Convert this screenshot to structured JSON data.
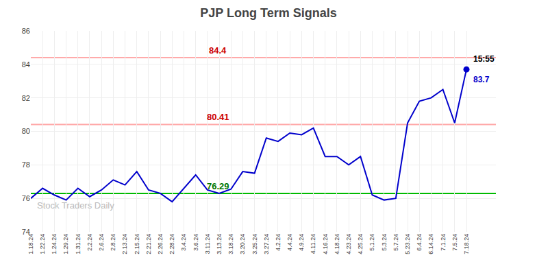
{
  "chart_data": {
    "type": "line",
    "title": "PJP Long Term Signals",
    "categories": [
      "1.18.24",
      "1.22.24",
      "1.24.24",
      "1.29.24",
      "1.31.24",
      "2.2.24",
      "2.6.24",
      "2.8.24",
      "2.13.24",
      "2.15.24",
      "2.21.24",
      "2.26.24",
      "2.28.24",
      "3.4.24",
      "3.6.24",
      "3.11.24",
      "3.13.24",
      "3.18.24",
      "3.20.24",
      "3.25.24",
      "3.27.24",
      "4.2.24",
      "4.4.24",
      "4.9.24",
      "4.11.24",
      "4.16.24",
      "4.18.24",
      "4.23.24",
      "4.25.24",
      "5.1.24",
      "5.3.24",
      "5.7.24",
      "5.23.24",
      "6.4.24",
      "6.14.24",
      "7.1.24",
      "7.5.24",
      "7.18.24"
    ],
    "values": [
      76.0,
      76.6,
      76.2,
      75.9,
      76.6,
      76.1,
      76.5,
      77.1,
      76.8,
      77.6,
      76.5,
      76.3,
      75.8,
      76.6,
      77.4,
      76.5,
      76.3,
      76.55,
      77.6,
      77.5,
      79.6,
      79.4,
      79.9,
      79.8,
      80.2,
      78.5,
      78.5,
      78.0,
      78.5,
      76.2,
      75.9,
      76.0,
      80.5,
      81.8,
      82.0,
      82.5,
      80.5,
      83.7
    ],
    "color": "#0000cc",
    "ylim": [
      74,
      86
    ],
    "yticks": [
      74,
      76,
      78,
      80,
      82,
      84,
      86
    ],
    "grid": true,
    "reference_lines": [
      {
        "value": 76.29,
        "color": "#00bb00"
      },
      {
        "value": 80.41,
        "color": "#ffaaaa"
      },
      {
        "value": 84.4,
        "color": "#ffaaaa"
      }
    ],
    "annotations": [
      {
        "text": "84.4",
        "y": 84.4,
        "color": "#cc0000"
      },
      {
        "text": "80.41",
        "y": 80.41,
        "color": "#cc0000"
      },
      {
        "text": "76.29",
        "y": 76.29,
        "color": "#007700"
      },
      {
        "text": "15:55",
        "x": "7.18.24",
        "y": 83.7,
        "color": "#000000"
      },
      {
        "text": "83.7",
        "x": "7.18.24",
        "y": 83.7,
        "color": "#0000cc"
      },
      {
        "text": "Stock Traders Daily",
        "color": "#bbbbbb"
      }
    ]
  }
}
